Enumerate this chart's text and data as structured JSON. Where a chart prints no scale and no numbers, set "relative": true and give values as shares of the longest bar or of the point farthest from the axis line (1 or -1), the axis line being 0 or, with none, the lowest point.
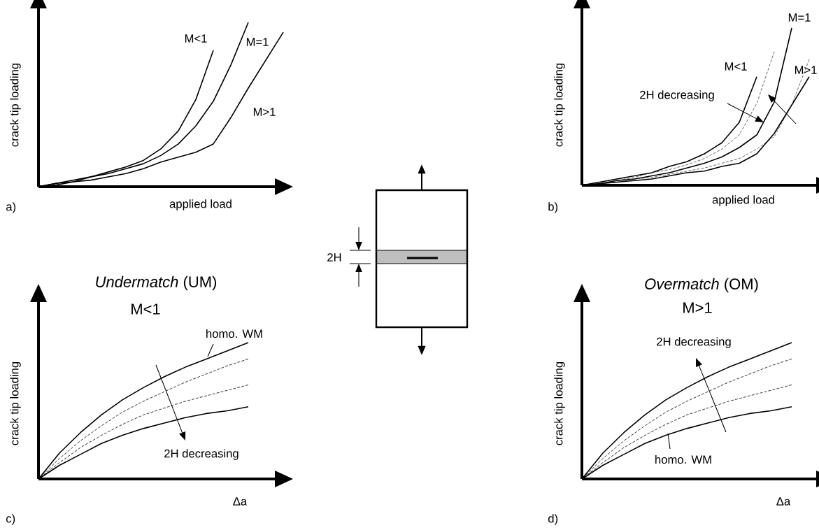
{
  "chart_data": [
    {
      "type": "line",
      "relative": true,
      "xlabel": "applied load",
      "ylabel": "crack tip loading",
      "categories": [
        null,
        null,
        null,
        null,
        null,
        null,
        null,
        null,
        null,
        null,
        null,
        null,
        null,
        null,
        null
      ],
      "annotations": [
        "a)"
      ],
      "series": [
        {
          "name": "M<1",
          "color": "#000000",
          "line_style": "solid",
          "values": [
            0,
            0.02,
            0.04,
            0.06,
            0.09,
            0.12,
            0.16,
            0.23,
            0.34,
            0.53,
            0.83,
            null,
            null,
            null,
            null
          ]
        },
        {
          "name": "M=1",
          "color": "#000000",
          "line_style": "solid",
          "values": [
            0,
            0.02,
            0.03,
            0.06,
            0.08,
            0.11,
            0.14,
            0.19,
            0.26,
            0.37,
            0.52,
            0.74,
            1,
            null,
            null
          ]
        },
        {
          "name": "M>1",
          "color": "#000000",
          "line_style": "solid",
          "values": [
            0,
            0.01,
            0.03,
            0.04,
            0.06,
            0.08,
            0.11,
            0.15,
            0.18,
            0.21,
            0.26,
            0.42,
            0.6,
            0.77,
            0.94
          ]
        }
      ]
    },
    {
      "type": "line",
      "relative": true,
      "xlabel": "applied load",
      "ylabel": "crack tip loading",
      "categories": [
        null,
        null,
        null,
        null,
        null,
        null,
        null,
        null,
        null,
        null,
        null,
        null,
        null,
        null
      ],
      "annotations": [
        "2H decreasing",
        "b)"
      ],
      "series": [
        {
          "name": "M<1",
          "color": "#000000",
          "line_style": "solid",
          "values": [
            0,
            0.02,
            0.04,
            0.06,
            0.08,
            0.12,
            0.15,
            0.2,
            0.27,
            0.4,
            0.69,
            null,
            null,
            null
          ]
        },
        {
          "color": "#404040",
          "line_style": "dashed",
          "values": [
            0,
            0.01,
            0.03,
            0.05,
            0.08,
            0.1,
            0.13,
            0.17,
            0.23,
            0.32,
            0.52,
            0.85,
            null,
            null
          ]
        },
        {
          "name": "M=1",
          "color": "#000000",
          "line_style": "solid",
          "values": [
            0,
            0.01,
            0.03,
            0.04,
            0.06,
            0.08,
            0.11,
            0.14,
            0.18,
            0.24,
            0.32,
            0.53,
            1,
            null
          ]
        },
        {
          "color": "#404040",
          "line_style": "dashed",
          "values": [
            0,
            0.01,
            0.02,
            0.04,
            0.05,
            0.07,
            0.09,
            0.11,
            0.14,
            0.17,
            0.23,
            0.31,
            0.51,
            0.8
          ]
        },
        {
          "name": "M>1",
          "color": "#000000",
          "line_style": "solid",
          "values": [
            0,
            0.01,
            0.02,
            0.03,
            0.04,
            0.06,
            0.08,
            0.09,
            0.12,
            0.14,
            0.2,
            0.33,
            0.51,
            0.69
          ]
        }
      ]
    },
    {
      "type": "line",
      "relative": true,
      "title": "*Undermatch* (UM)",
      "subtitle": "M<1",
      "xlabel": "Δa",
      "ylabel": "crack tip loading",
      "categories": [
        null,
        null,
        null,
        null,
        null,
        null,
        null,
        null,
        null,
        null,
        null
      ],
      "annotations": [
        "2H decreasing",
        "c)"
      ],
      "series": [
        {
          "name": "homo. WM",
          "color": "#000000",
          "line_style": "solid",
          "values": [
            0,
            0.19,
            0.34,
            0.47,
            0.58,
            0.67,
            0.75,
            0.82,
            0.88,
            0.94,
            1
          ]
        },
        {
          "color": "#000000",
          "line_style": "dashed",
          "values": [
            0,
            0.15,
            0.28,
            0.39,
            0.49,
            0.57,
            0.64,
            0.71,
            0.77,
            0.83,
            0.88
          ]
        },
        {
          "color": "#000000",
          "line_style": "dashed",
          "values": [
            0,
            0.12,
            0.23,
            0.32,
            0.4,
            0.47,
            0.52,
            0.57,
            0.61,
            0.65,
            0.69
          ]
        },
        {
          "color": "#000000",
          "line_style": "solid",
          "values": [
            0,
            0.1,
            0.18,
            0.26,
            0.32,
            0.37,
            0.41,
            0.45,
            0.48,
            0.5,
            0.53
          ]
        }
      ]
    },
    {
      "type": "line",
      "relative": true,
      "title": "*Overmatch* (OM)",
      "subtitle": "M>1",
      "xlabel": "Δa",
      "ylabel": "crack tip loading",
      "categories": [
        null,
        null,
        null,
        null,
        null,
        null,
        null,
        null,
        null,
        null,
        null
      ],
      "annotations": [
        "2H decreasing",
        "d)"
      ],
      "series": [
        {
          "color": "#000000",
          "line_style": "solid",
          "values": [
            0,
            0.19,
            0.34,
            0.47,
            0.58,
            0.67,
            0.75,
            0.82,
            0.88,
            0.94,
            1
          ]
        },
        {
          "color": "#000000",
          "line_style": "dashed",
          "values": [
            0,
            0.15,
            0.28,
            0.39,
            0.49,
            0.57,
            0.64,
            0.71,
            0.77,
            0.83,
            0.88
          ]
        },
        {
          "color": "#000000",
          "line_style": "dashed",
          "values": [
            0,
            0.12,
            0.23,
            0.32,
            0.4,
            0.47,
            0.52,
            0.57,
            0.61,
            0.65,
            0.69
          ]
        },
        {
          "name": "homo. WM",
          "color": "#000000",
          "line_style": "solid",
          "values": [
            0,
            0.1,
            0.18,
            0.26,
            0.32,
            0.37,
            0.41,
            0.45,
            0.48,
            0.5,
            0.53
          ]
        }
      ]
    },
    {
      "type": "other",
      "annotations": [
        "2H"
      ]
    }
  ]
}
